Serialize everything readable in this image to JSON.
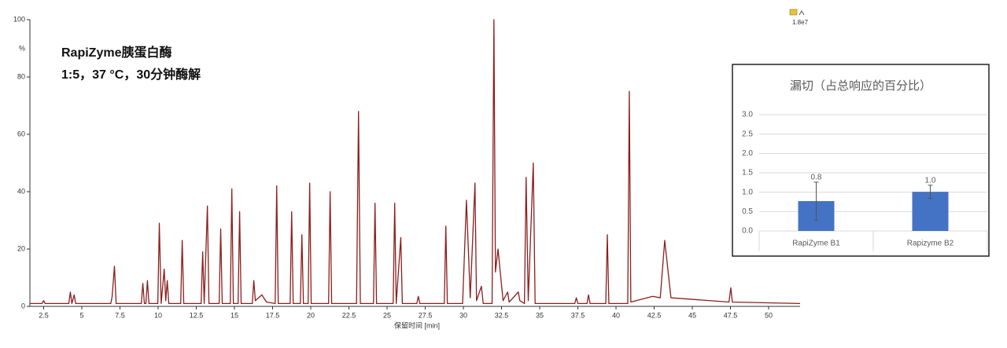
{
  "chart_data": [
    {
      "type": "line",
      "xlabel": "保留时间 [min]",
      "ylabel": "%",
      "annotations": [
        "RapiZyme胰蛋白酶",
        "1:5，37 °C，30分钟酶解",
        "1.8e7"
      ],
      "xlim": [
        1.6,
        52.06
      ],
      "ylim": [
        0,
        100
      ],
      "xticks": [
        2.5,
        5,
        7.5,
        10,
        12.5,
        15,
        17.5,
        20,
        22.5,
        25,
        27.5,
        30,
        32.5,
        35,
        37.5,
        40,
        42.5,
        45,
        47.5,
        50
      ],
      "yticks": [
        0,
        20,
        40,
        60,
        80,
        100
      ],
      "x": [
        1.6,
        2.4,
        2.5,
        2.6,
        4.15,
        4.25,
        4.35,
        4.5,
        4.6,
        6.9,
        6.99,
        7.14,
        7.25,
        8.9,
        9.0,
        9.1,
        9.2,
        9.3,
        9.4,
        9.98,
        10.08,
        10.2,
        10.4,
        10.5,
        10.6,
        10.7,
        11.48,
        11.58,
        11.68,
        12.82,
        12.92,
        13.02,
        13.23,
        13.33,
        14.0,
        14.1,
        14.2,
        14.73,
        14.83,
        14.93,
        15.24,
        15.34,
        15.44,
        16.17,
        16.27,
        16.37,
        16.8,
        17.1,
        17.67,
        17.77,
        17.87,
        18.65,
        18.75,
        18.85,
        19.32,
        19.42,
        19.52,
        19.83,
        19.93,
        20.03,
        21.17,
        21.27,
        21.37,
        23.0,
        23.13,
        23.25,
        24.11,
        24.21,
        24.31,
        25.4,
        25.5,
        25.6,
        25.9,
        26.0,
        26.95,
        27.05,
        27.15,
        28.75,
        28.85,
        28.95,
        29.95,
        30.2,
        30.45,
        30.76,
        30.86,
        31.18,
        31.3,
        31.88,
        32.0,
        32.1,
        32.27,
        32.6,
        32.9,
        33.0,
        33.6,
        33.7,
        34.0,
        34.11,
        34.25,
        34.58,
        34.7,
        37.3,
        37.4,
        37.5,
        38.1,
        38.2,
        38.3,
        39.33,
        39.43,
        39.53,
        40.77,
        40.87,
        40.97,
        42.4,
        42.9,
        43.19,
        43.6,
        47.4,
        47.52,
        47.62,
        52.06
      ],
      "series": [
        {
          "color": "#8b1e1e",
          "values": [
            1,
            1,
            2,
            1,
            1,
            5,
            1,
            4,
            1,
            1,
            3.5,
            14,
            1,
            1,
            8,
            1,
            1,
            9,
            1,
            1,
            29,
            1,
            13,
            2,
            9,
            1,
            1,
            23,
            1,
            1,
            19,
            1,
            35,
            1,
            1,
            27,
            1,
            1,
            41,
            1,
            1,
            33,
            1,
            1,
            9,
            2,
            4,
            1.5,
            1,
            42,
            1,
            1,
            33,
            1,
            1,
            25,
            1,
            1,
            43,
            1,
            1,
            40,
            1,
            1,
            68,
            1,
            1,
            36,
            1,
            1,
            36,
            1,
            24,
            1,
            1,
            3.5,
            1,
            1,
            28,
            1,
            1,
            37,
            3,
            43,
            2,
            7,
            1,
            1,
            100,
            12,
            20,
            2,
            5,
            1.5,
            5,
            2,
            1,
            45,
            2,
            50,
            1,
            1,
            3,
            1,
            1,
            4,
            1,
            1,
            25,
            1,
            1,
            75,
            1.5,
            3.5,
            3,
            23,
            3,
            1.5,
            6.5,
            1.5,
            1
          ]
        }
      ]
    },
    {
      "type": "bar",
      "title": "漏切（占总响应的百分比）",
      "categories": [
        "RapiZyme B1",
        "Rapizyme B2"
      ],
      "values": [
        0.77,
        1.01
      ],
      "value_labels": [
        "0.8",
        "1.0"
      ],
      "errors": [
        0.49,
        0.17
      ],
      "color": "#4472c4",
      "ylim": [
        0,
        3.0
      ],
      "grid": true,
      "yticks": [
        {
          "value": 0,
          "label": "0.0"
        },
        {
          "value": 0.5,
          "label": "0.5"
        },
        {
          "value": 1,
          "label": "1.0"
        },
        {
          "value": 1.5,
          "label": "1.5"
        },
        {
          "value": 2,
          "label": "2.0"
        },
        {
          "value": 2.5,
          "label": "2.5"
        },
        {
          "value": 3,
          "label": "3.0"
        }
      ]
    }
  ]
}
